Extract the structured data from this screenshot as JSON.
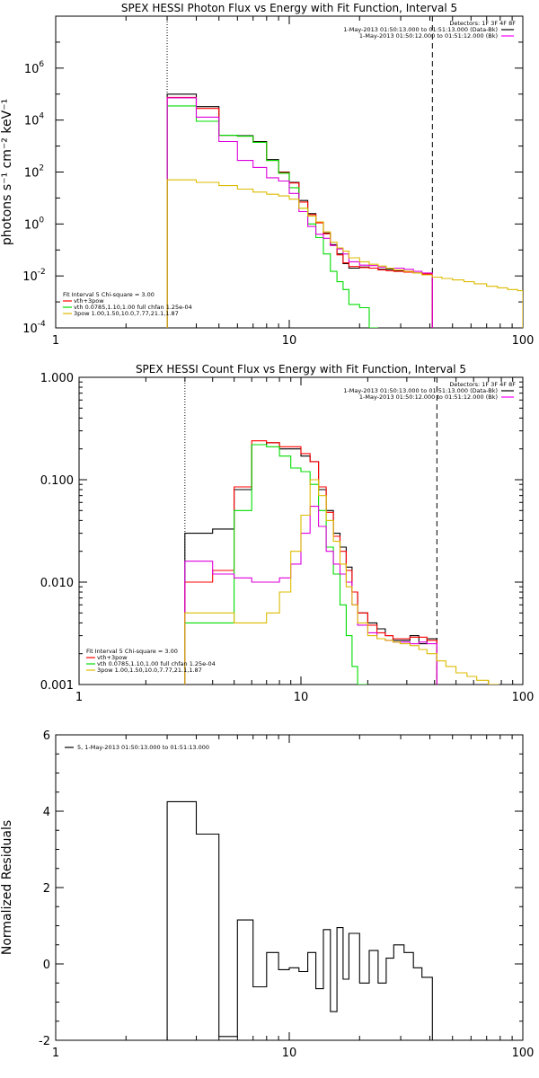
{
  "chart_data": [
    {
      "type": "line",
      "title": "SPEX HESSI Photon Flux vs Energy with Fit Function, Interval 5",
      "ylabel": "photons s⁻¹ cm⁻² keV⁻¹",
      "xscale": "log",
      "yscale": "log",
      "xlim": [
        1,
        100
      ],
      "ylim": [
        0.0001,
        100000000
      ],
      "xticks": [
        {
          "v": 1,
          "label": "1"
        },
        {
          "v": 10,
          "label": "10"
        },
        {
          "v": 100,
          "label": "100"
        }
      ],
      "yticks": [
        {
          "v": 0.0001,
          "base": "10",
          "exp": "-4"
        },
        {
          "v": 0.01,
          "base": "10",
          "exp": "-2"
        },
        {
          "v": 1,
          "base": "10",
          "exp": "0"
        },
        {
          "v": 100,
          "base": "10",
          "exp": "2"
        },
        {
          "v": 10000,
          "base": "10",
          "exp": "4"
        },
        {
          "v": 1000000,
          "base": "10",
          "exp": "6"
        }
      ],
      "vlines": [
        {
          "x": 3,
          "style": "dotted"
        },
        {
          "x": 41,
          "style": "dashed"
        }
      ],
      "legend_top": {
        "header": "Detectors: 1F 3F 4F 8F",
        "entries": [
          {
            "text": "1-May-2013 01:50:13.000 to 01:51:13.000 (Data-Bk)",
            "color": "#000000"
          },
          {
            "text": "1-May-2013 01:50:12.000 to 01:51:12.000 (Bk)",
            "color": "#ff00ff"
          }
        ]
      },
      "legend_bottom": {
        "header": "Fit Interval 5   Chi-square = 3.00",
        "entries": [
          {
            "text": "vth+3pow",
            "color": "#ff0000"
          },
          {
            "text": "vth 0.0785,1.10,1.00   full chfan 1.25e-04",
            "color": "#00dd00"
          },
          {
            "text": "3pow 1.00,1.50,10.0,7.77,21.1,1.87",
            "color": "#ddbb00"
          }
        ]
      },
      "series": [
        {
          "color": "#000000",
          "edges": [
            3,
            4,
            5,
            6,
            7,
            8,
            9,
            10,
            11,
            12,
            13,
            14,
            15,
            16,
            17,
            18,
            20,
            22,
            24,
            26,
            28,
            31,
            34,
            37,
            41
          ],
          "values": [
            100000,
            33000,
            2600,
            2500,
            1500,
            300,
            100,
            40,
            8,
            2.5,
            1.2,
            0.45,
            0.16,
            0.07,
            0.03,
            0.02,
            0.022,
            0.02,
            0.018,
            0.018,
            0.016,
            0.014,
            0.013,
            0.012
          ]
        },
        {
          "color": "#ff0000",
          "edges": [
            3,
            4,
            5,
            6,
            7,
            8,
            9,
            10,
            11,
            12,
            13,
            14,
            15,
            16,
            17,
            18,
            20,
            22,
            24,
            26,
            28,
            31,
            34,
            37,
            41
          ],
          "values": [
            75000,
            28000,
            2600,
            2400,
            1400,
            280,
            95,
            38,
            7,
            2.3,
            1.1,
            0.42,
            0.15,
            0.065,
            0.032,
            0.023,
            0.021,
            0.02,
            0.017,
            0.016,
            0.015,
            0.014,
            0.013,
            0.012
          ]
        },
        {
          "color": "#00dd00",
          "edges": [
            3,
            4,
            5,
            6,
            7,
            8,
            9,
            10,
            11,
            12,
            13,
            14,
            15,
            16,
            17,
            18,
            20,
            22,
            24
          ],
          "values": [
            35000,
            9000,
            2600,
            2400,
            1400,
            280,
            90,
            25,
            4,
            1,
            0.3,
            0.07,
            0.015,
            0.006,
            0.003,
            0.0008,
            0.0006,
            0.0001
          ]
        },
        {
          "color": "#dd00dd",
          "edges": [
            3,
            4,
            5,
            6,
            7,
            8,
            9,
            10,
            11,
            12,
            13,
            14,
            15,
            16,
            17,
            18,
            20,
            22,
            24,
            26,
            28,
            31,
            34,
            37,
            41
          ],
          "values": [
            72000,
            13000,
            1500,
            280,
            150,
            60,
            45,
            15,
            3,
            0.8,
            0.4,
            0.28,
            0.15,
            0.11,
            0.07,
            0.035,
            0.026,
            0.025,
            0.022,
            0.02,
            0.02,
            0.018,
            0.015,
            0.013
          ]
        },
        {
          "color": "#ddbb00",
          "edges": [
            3,
            4,
            5,
            6,
            7,
            8,
            9,
            10,
            11,
            12,
            13,
            14,
            15,
            16,
            17,
            18,
            20,
            22,
            24,
            26,
            28,
            31,
            34,
            37,
            41,
            45,
            50,
            56,
            62,
            70,
            78,
            86,
            95,
            100
          ],
          "values": [
            50,
            40,
            30,
            22,
            17,
            14,
            12,
            9,
            4,
            2,
            1.2,
            0.5,
            0.2,
            0.12,
            0.09,
            0.05,
            0.035,
            0.028,
            0.024,
            0.02,
            0.017,
            0.015,
            0.013,
            0.011,
            0.009,
            0.008,
            0.007,
            0.006,
            0.005,
            0.004,
            0.0035,
            0.003,
            0.0027
          ]
        }
      ]
    },
    {
      "type": "line",
      "title": "SPEX HESSI Count Flux vs Energy with Fit Function, Interval 5",
      "ylabel": "",
      "xscale": "log",
      "yscale": "log",
      "xlim": [
        1,
        100
      ],
      "ylim": [
        0.001,
        1
      ],
      "xticks": [
        {
          "v": 1,
          "label": "1"
        },
        {
          "v": 10,
          "label": "10"
        },
        {
          "v": 100,
          "label": "100"
        }
      ],
      "yticks": [
        {
          "v": 0.001,
          "label": "0.001"
        },
        {
          "v": 0.01,
          "label": "0.010"
        },
        {
          "v": 0.1,
          "label": "0.100"
        },
        {
          "v": 1,
          "label": "1.000"
        }
      ],
      "vlines": [
        {
          "x": 3,
          "style": "dotted"
        },
        {
          "x": 41,
          "style": "dashed"
        }
      ],
      "legend_top": {
        "header": "Detectors: 1F 3F 4F 8F",
        "entries": [
          {
            "text": "1-May-2013 01:50:13.000 to 01:51:13.000 (Data-Bk)",
            "color": "#000000"
          },
          {
            "text": "1-May-2013 01:50:12.000 to 01:51:12.000 (Bk)",
            "color": "#ff00ff"
          }
        ]
      },
      "legend_bottom": {
        "header": "Fit Interval 5   Chi-square = 3.00",
        "entries": [
          {
            "text": "vth+3pow",
            "color": "#ff0000"
          },
          {
            "text": "vth 0.0785,1.10,1.00   full chfan 1.25e-04",
            "color": "#00dd00"
          },
          {
            "text": "3pow 1.00,1.50,10.0,7.77,21.1,1.87",
            "color": "#ddbb00"
          }
        ]
      },
      "series": [
        {
          "color": "#000000",
          "edges": [
            3,
            4,
            5,
            6,
            7,
            8,
            9,
            10,
            11,
            12,
            13,
            14,
            15,
            16,
            17,
            18,
            20,
            22,
            24,
            26,
            28,
            31,
            34,
            37,
            41
          ],
          "values": [
            0.03,
            0.033,
            0.08,
            0.22,
            0.23,
            0.2,
            0.2,
            0.17,
            0.15,
            0.08,
            0.05,
            0.03,
            0.022,
            0.014,
            0.008,
            0.005,
            0.004,
            0.0035,
            0.003,
            0.0027,
            0.0027,
            0.003,
            0.0025,
            0.0028
          ]
        },
        {
          "color": "#ff0000",
          "edges": [
            3,
            4,
            5,
            6,
            7,
            8,
            9,
            10,
            11,
            12,
            13,
            14,
            15,
            16,
            17,
            18,
            20,
            22,
            24,
            26,
            28,
            31,
            34,
            37,
            41
          ],
          "values": [
            0.01,
            0.013,
            0.085,
            0.24,
            0.23,
            0.21,
            0.21,
            0.18,
            0.15,
            0.085,
            0.048,
            0.028,
            0.02,
            0.013,
            0.008,
            0.005,
            0.0038,
            0.0032,
            0.003,
            0.0028,
            0.0028,
            0.0029,
            0.0029,
            0.0027
          ]
        },
        {
          "color": "#00dd00",
          "edges": [
            3,
            4,
            5,
            6,
            7,
            8,
            9,
            10,
            11,
            12,
            13,
            14,
            15,
            16,
            17,
            18,
            20
          ],
          "values": [
            0.004,
            0.004,
            0.05,
            0.22,
            0.21,
            0.17,
            0.13,
            0.12,
            0.09,
            0.05,
            0.022,
            0.012,
            0.006,
            0.003,
            0.0015,
            0.001
          ]
        },
        {
          "color": "#dd00dd",
          "edges": [
            3,
            4,
            5,
            6,
            7,
            8,
            9,
            10,
            11,
            12,
            13,
            14,
            15,
            16,
            17,
            18,
            20,
            22,
            24,
            26,
            28,
            31,
            34,
            37,
            41
          ],
          "values": [
            0.016,
            0.012,
            0.011,
            0.01,
            0.01,
            0.011,
            0.015,
            0.03,
            0.055,
            0.035,
            0.02,
            0.015,
            0.012,
            0.01,
            0.006,
            0.0038,
            0.0032,
            0.0028,
            0.0027,
            0.0026,
            0.0026,
            0.0025,
            0.0026,
            0.0025
          ]
        },
        {
          "color": "#ddbb00",
          "edges": [
            3,
            4,
            5,
            6,
            7,
            8,
            9,
            10,
            11,
            12,
            13,
            14,
            15,
            16,
            17,
            18,
            20,
            22,
            24,
            26,
            28,
            31,
            34,
            37,
            41,
            45,
            50,
            56,
            62,
            70,
            78
          ],
          "values": [
            0.005,
            0.005,
            0.004,
            0.004,
            0.005,
            0.008,
            0.02,
            0.045,
            0.1,
            0.07,
            0.04,
            0.025,
            0.015,
            0.009,
            0.006,
            0.004,
            0.003,
            0.0028,
            0.0027,
            0.0026,
            0.0025,
            0.0024,
            0.0022,
            0.002,
            0.0017,
            0.0015,
            0.0013,
            0.0012,
            0.0011,
            0.001
          ]
        }
      ]
    },
    {
      "type": "line",
      "title": "",
      "ylabel": "Normalized Residuals",
      "xscale": "log",
      "yscale": "linear",
      "xlim": [
        1,
        100
      ],
      "ylim": [
        -2,
        6
      ],
      "xticks": [
        {
          "v": 1,
          "label": "1"
        },
        {
          "v": 10,
          "label": "10"
        },
        {
          "v": 100,
          "label": "100"
        }
      ],
      "yticks": [
        {
          "v": -2,
          "label": "-2"
        },
        {
          "v": 0,
          "label": "0"
        },
        {
          "v": 2,
          "label": "2"
        },
        {
          "v": 4,
          "label": "4"
        },
        {
          "v": 6,
          "label": "6"
        }
      ],
      "vlines": [],
      "legend_top": {
        "header": "",
        "entries": [
          {
            "text": "5,  1-May-2013 01:50:13.000 to 01:51:13.000",
            "color": "#000000"
          }
        ]
      },
      "legend_bottom": {
        "header": "",
        "entries": []
      },
      "series": [
        {
          "color": "#000000",
          "edges": [
            3,
            4,
            5,
            6,
            7,
            8,
            9,
            10,
            11,
            12,
            13,
            14,
            15,
            16,
            17,
            18,
            20,
            22,
            24,
            26,
            28,
            31,
            34,
            37,
            41
          ],
          "values": [
            4.25,
            3.4,
            -1.9,
            1.15,
            -0.6,
            0.3,
            -0.15,
            -0.1,
            -0.2,
            0.3,
            -0.65,
            0.9,
            -1.25,
            0.95,
            -0.4,
            0.8,
            -0.5,
            0.35,
            -0.5,
            0.15,
            0.5,
            0.3,
            -0.1,
            -0.35
          ]
        }
      ]
    }
  ]
}
